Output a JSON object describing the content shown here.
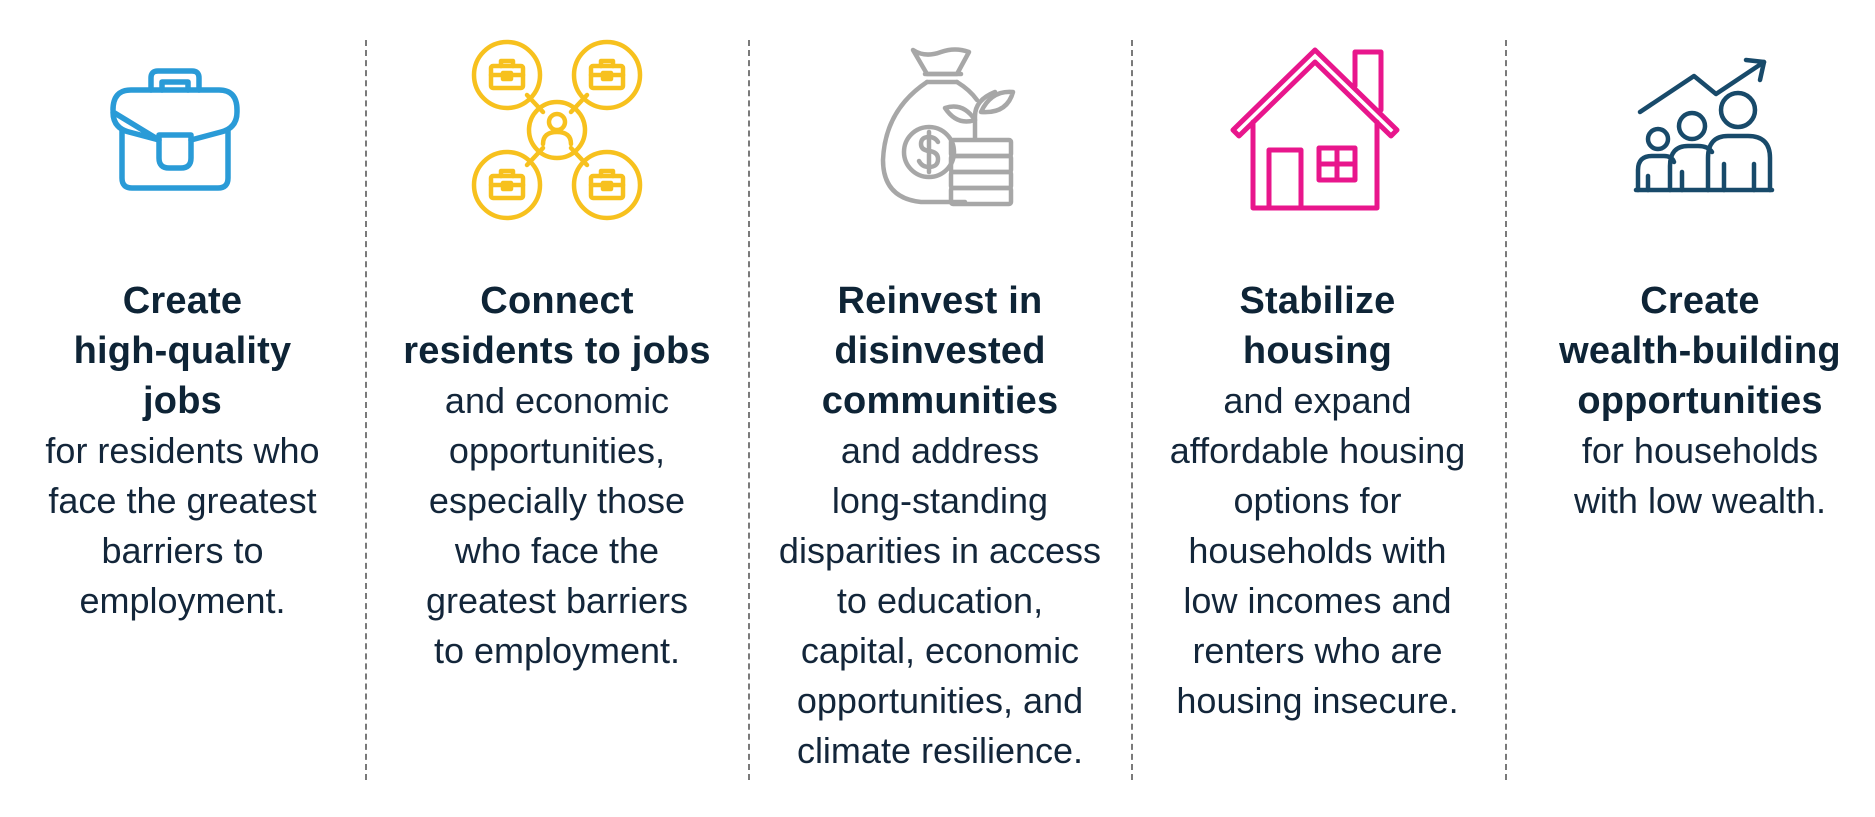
{
  "colors": {
    "text": "#12253a",
    "jobs_icon": "#2a9bd7",
    "connect_icon": "#f7c11e",
    "reinvest_icon": "#a7a7a7",
    "housing_icon": "#e8168c",
    "wealth_icon": "#184a6a",
    "divider": "#7a7a7a"
  },
  "goals": [
    {
      "icon": "briefcase-icon",
      "title": "Create\nhigh-quality\njobs",
      "description": "for residents who\nface the greatest\nbarriers to\nemployment."
    },
    {
      "icon": "job-network-icon",
      "title": "Connect\nresidents to jobs",
      "description": "and economic\nopportunities,\nespecially those\nwho face the\ngreatest barriers\nto employment."
    },
    {
      "icon": "money-bag-growth-icon",
      "title": "Reinvest in\ndisinvested\ncommunities",
      "description": "and address\nlong-standing\ndisparities in access\nto education,\ncapital, economic\nopportunities, and\nclimate resilience."
    },
    {
      "icon": "house-icon",
      "title": "Stabilize\nhousing",
      "description": "and expand\naffordable housing\noptions for\nhouseholds with\nlow incomes and\nrenters who are\nhousing insecure."
    },
    {
      "icon": "family-growth-icon",
      "title": "Create\nwealth-building\nopportunities",
      "description": "for households\nwith low wealth."
    }
  ]
}
